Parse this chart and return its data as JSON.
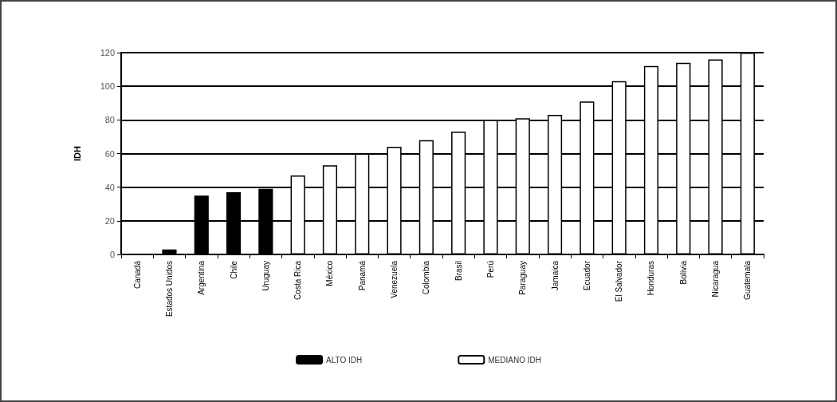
{
  "chart_data": {
    "type": "bar",
    "ylabel": "IDH",
    "categories": [
      "Canadá",
      "Estados Unidos",
      "Argentina",
      "Chile",
      "Uruguay",
      "Costa Rica",
      "México",
      "Panamá",
      "Venezuela",
      "Colombia",
      "Brasil",
      "Perú",
      "Paraguay",
      "Jamaica",
      "Ecuador",
      "El Salvador",
      "Honduras",
      "Bolivia",
      "Nicaragua",
      "Guatemala"
    ],
    "series": [
      {
        "name": "ALTO IDH",
        "color": "#000000",
        "values": [
          0,
          3,
          35,
          37,
          39,
          null,
          null,
          null,
          null,
          null,
          null,
          null,
          null,
          null,
          null,
          null,
          null,
          null,
          null,
          null
        ]
      },
      {
        "name": "MEDIANO IDH",
        "color": "#ffffff",
        "values": [
          null,
          null,
          null,
          null,
          null,
          47,
          53,
          60,
          64,
          68,
          73,
          80,
          81,
          83,
          91,
          103,
          112,
          114,
          116,
          120
        ]
      }
    ],
    "ylim": [
      0,
      120
    ],
    "yticks": [
      0,
      20,
      40,
      60,
      80,
      100,
      120
    ],
    "grid": "y",
    "legend": "bottom"
  }
}
